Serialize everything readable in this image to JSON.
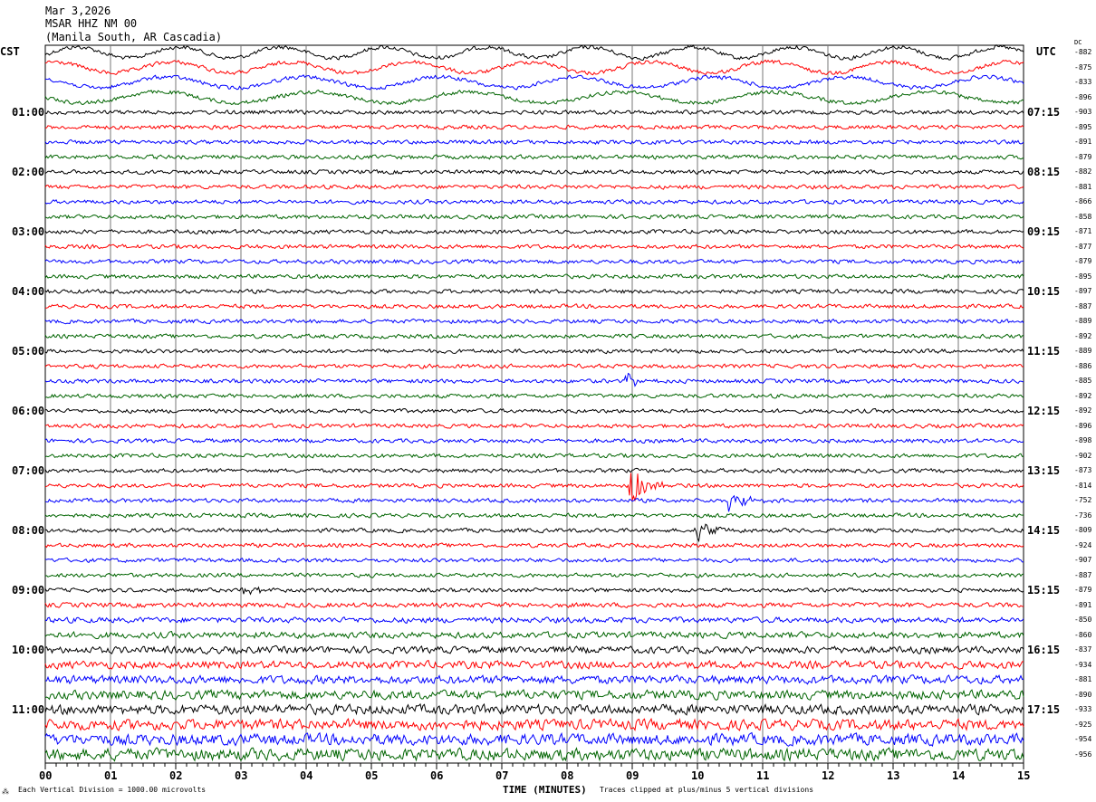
{
  "header": {
    "date": "Mar 3,2026",
    "station": "MSAR HHZ NM 00",
    "location": "(Manila South, AR Cascadia)"
  },
  "left_timezone": "CST",
  "right_timezone": "UTC",
  "dc_label": "DC",
  "footer": {
    "scale_note": "Each Vertical Division = 1000.00 microvolts",
    "xlabel": "TIME (MINUTES)",
    "clip_note": "Traces clipped at plus/minus 5 vertical divisions"
  },
  "chart_data": {
    "type": "line",
    "subtype": "helicorder",
    "xlabel": "TIME (MINUTES)",
    "xlim": [
      0,
      15
    ],
    "x_ticks": [
      "00",
      "01",
      "02",
      "03",
      "04",
      "05",
      "06",
      "07",
      "08",
      "09",
      "10",
      "11",
      "12",
      "13",
      "14",
      "15"
    ],
    "trace_colors": [
      "#000000",
      "#ff0000",
      "#0000ff",
      "#006400"
    ],
    "left_hour_labels": [
      "01:00",
      "02:00",
      "03:00",
      "04:00",
      "05:00",
      "06:00",
      "07:00",
      "08:00",
      "09:00",
      "10:00",
      "11:00"
    ],
    "right_hour_labels": [
      "07:15",
      "08:15",
      "09:15",
      "10:15",
      "11:15",
      "12:15",
      "13:15",
      "14:15",
      "15:15",
      "16:15",
      "17:15"
    ],
    "dc_offsets": [
      "-882",
      "-875",
      "-833",
      "-896",
      "-903",
      "-895",
      "-891",
      "-879",
      "-882",
      "-881",
      "-866",
      "-858",
      "-871",
      "-877",
      "-879",
      "-895",
      "-897",
      "-887",
      "-889",
      "-892",
      "-889",
      "-886",
      "-885",
      "-892",
      "-892",
      "-896",
      "-898",
      "-902",
      "-873",
      "-814",
      "-752",
      "-736",
      "-809",
      "-924",
      "-907",
      "-887",
      "-879",
      "-891",
      "-850",
      "-860",
      "-837",
      "-934",
      "-881",
      "-890",
      "-933",
      "-925",
      "-954",
      "-956"
    ],
    "events": [
      {
        "trace": 29,
        "minute": 9.0,
        "amplitude": "large"
      },
      {
        "trace": 30,
        "minute": 10.5,
        "amplitude": "medium"
      },
      {
        "trace": 32,
        "minute": 10.0,
        "amplitude": "medium"
      },
      {
        "trace": 36,
        "minute": 3.05,
        "amplitude": "small"
      },
      {
        "trace": 22,
        "minute": 8.95,
        "amplitude": "small"
      }
    ]
  }
}
